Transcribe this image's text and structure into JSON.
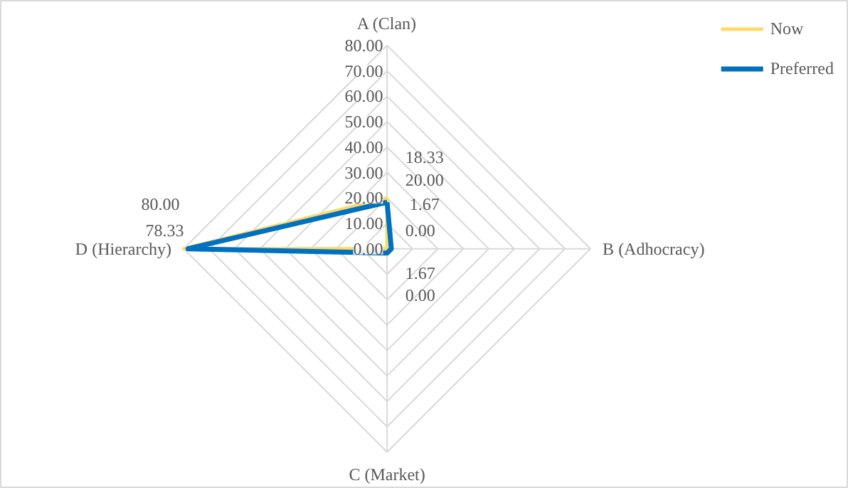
{
  "chart_data": {
    "type": "radar",
    "categories": [
      "A (Clan)",
      "B (Adhocracy)",
      "C (Market)",
      "D (Hierarchy)"
    ],
    "series": [
      {
        "name": "Now",
        "color": "#ffd966",
        "values": [
          20,
          0,
          0,
          80
        ],
        "value_labels": [
          "20.00",
          "0.00",
          "0.00",
          "80.00"
        ]
      },
      {
        "name": "Preferred",
        "color": "#0070c0",
        "values": [
          18.33,
          1.67,
          1.67,
          78.33
        ],
        "value_labels": [
          "18.33",
          "1.67",
          "1.67",
          "78.33"
        ]
      }
    ],
    "ylim": [
      0,
      80
    ],
    "yticks": [
      {
        "value": 0,
        "label": "0.00"
      },
      {
        "value": 10,
        "label": "10.00"
      },
      {
        "value": 20,
        "label": "20.00"
      },
      {
        "value": 30,
        "label": "30.00"
      },
      {
        "value": 40,
        "label": "40.00"
      },
      {
        "value": 50,
        "label": "50.00"
      },
      {
        "value": 60,
        "label": "60.00"
      },
      {
        "value": 70,
        "label": "70.00"
      },
      {
        "value": 80,
        "label": "80.00"
      }
    ],
    "grid": true,
    "legend": "top right"
  }
}
